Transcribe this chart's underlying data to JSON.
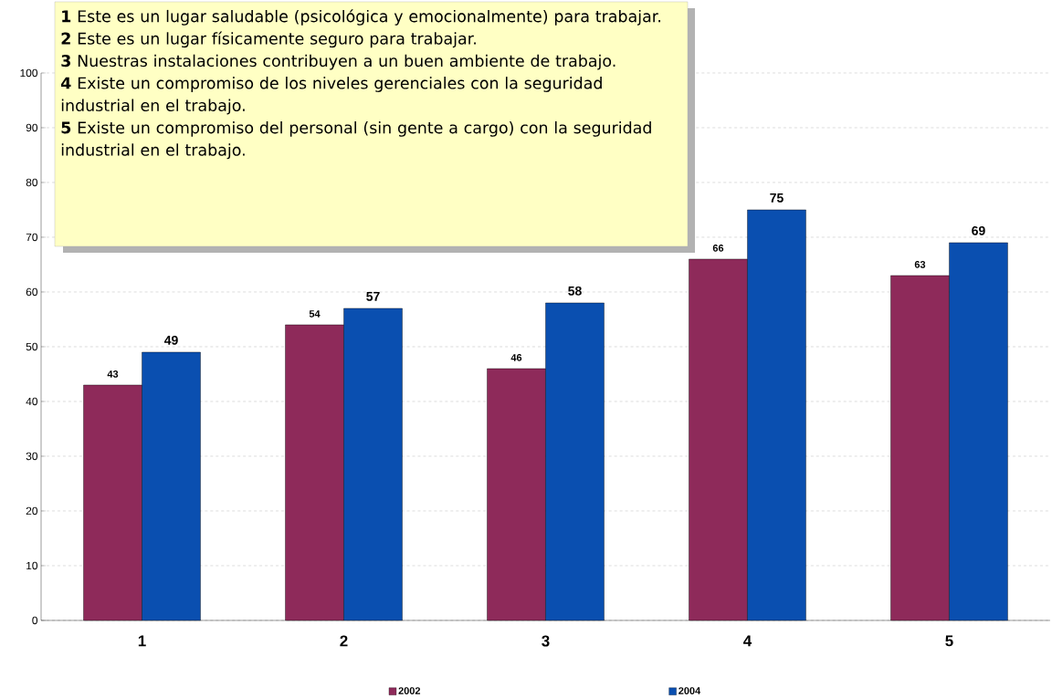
{
  "chart_data": {
    "type": "bar",
    "categories": [
      "1",
      "2",
      "3",
      "4",
      "5"
    ],
    "series": [
      {
        "name": "2002",
        "color": "#8e2a5a",
        "values": [
          43,
          54,
          46,
          66,
          63
        ]
      },
      {
        "name": "2004",
        "color": "#0a4fb0",
        "values": [
          49,
          57,
          58,
          75,
          69
        ]
      }
    ],
    "ylim": [
      0,
      100
    ],
    "yticks": [
      0,
      10,
      20,
      30,
      40,
      50,
      60,
      70,
      80,
      90,
      100
    ],
    "grid": "y",
    "legend": "bottom",
    "data_labels": true,
    "annotations": [
      "**1** Este es un lugar saludable (psicológica y emocionalmente) para trabajar.",
      "**2** Este es un lugar físicamente seguro para trabajar.",
      "**3** Nuestras instalaciones contribuyen a un buen ambiente de trabajo.",
      "**4** Existe un compromiso de los niveles gerenciales con la seguridad industrial en el trabajo.",
      "**5** Existe un compromiso del personal (sin gente a cargo) con la seguridad industrial en el trabajo."
    ]
  }
}
